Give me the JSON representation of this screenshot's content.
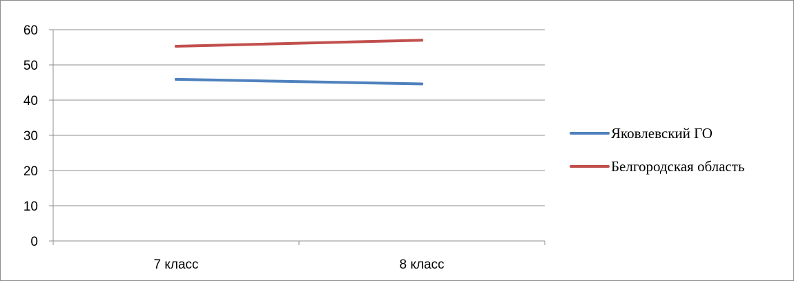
{
  "chart_data": {
    "type": "line",
    "categories": [
      "7 класс",
      "8 класс"
    ],
    "series": [
      {
        "name": "Яковлевский ГО",
        "values": [
          45.9,
          44.6
        ],
        "color": "#4f81bd"
      },
      {
        "name": "Белгородская область",
        "values": [
          55.3,
          57.0
        ],
        "color": "#c0504d"
      }
    ],
    "ylim": [
      0,
      60
    ],
    "yticks": [
      0,
      10,
      20,
      30,
      40,
      50,
      60
    ],
    "ytick_labels": [
      "0",
      "10",
      "20",
      "30",
      "40",
      "50",
      "60"
    ],
    "grid": true,
    "legend_position": "right",
    "title": "",
    "xlabel": "",
    "ylabel": ""
  }
}
